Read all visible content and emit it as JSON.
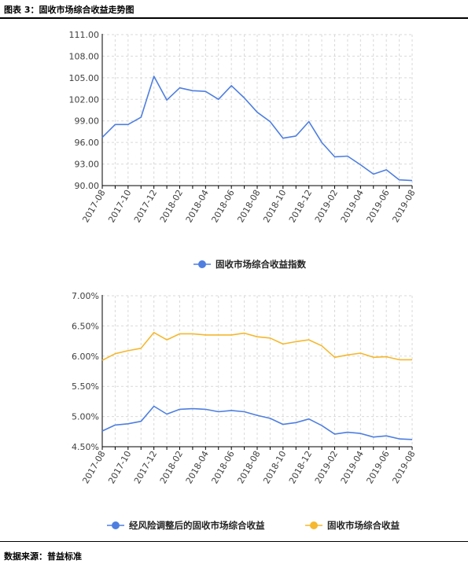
{
  "header": {
    "title": "图表 3：固收市场综合收益走势图"
  },
  "footer": {
    "source": "数据来源：普益标准"
  },
  "colors": {
    "blue": "#4E7FE0",
    "orange": "#F5B82E",
    "grid": "#d9d9d9",
    "axis": "#000000"
  },
  "chart_data": [
    {
      "type": "line",
      "x_labels": [
        "2017-08",
        "2017-10",
        "2017-12",
        "2018-02",
        "2018-04",
        "2018-06",
        "2018-08",
        "2018-10",
        "2018-12",
        "2019-02",
        "2019-04",
        "2019-06",
        "2019-08"
      ],
      "yticks": [
        "90.00",
        "93.00",
        "96.00",
        "99.00",
        "102.00",
        "105.00",
        "108.00",
        "111.00"
      ],
      "ylim": [
        90,
        111
      ],
      "series": [
        {
          "name": "固收市场综合收益指数",
          "color": "#4E7FE0",
          "values": [
            96.7,
            98.5,
            98.5,
            99.5,
            105.2,
            101.9,
            103.6,
            103.2,
            103.1,
            102.0,
            103.9,
            102.2,
            100.2,
            98.9,
            96.6,
            96.9,
            98.9,
            96.0,
            94.0,
            94.1,
            92.9,
            91.6,
            92.2,
            90.8,
            90.7
          ]
        }
      ]
    },
    {
      "type": "line",
      "x_labels": [
        "2017-08",
        "2017-10",
        "2017-12",
        "2018-02",
        "2018-04",
        "2018-06",
        "2018-08",
        "2018-10",
        "2018-12",
        "2019-02",
        "2019-04",
        "2019-06",
        "2019-08"
      ],
      "yticks": [
        "4.50%",
        "5.00%",
        "5.50%",
        "6.00%",
        "6.50%",
        "7.00%"
      ],
      "ylim": [
        4.5,
        7.0
      ],
      "series": [
        {
          "name": "经风险调整后的固收市场综合收益",
          "color": "#4E7FE0",
          "values": [
            4.76,
            4.86,
            4.88,
            4.92,
            5.17,
            5.04,
            5.12,
            5.13,
            5.12,
            5.08,
            5.1,
            5.08,
            5.02,
            4.97,
            4.87,
            4.9,
            4.96,
            4.85,
            4.71,
            4.74,
            4.72,
            4.66,
            4.68,
            4.63,
            4.62
          ]
        },
        {
          "name": "固收市场综合收益",
          "color": "#F5B82E",
          "values": [
            5.93,
            6.04,
            6.09,
            6.13,
            6.39,
            6.27,
            6.37,
            6.37,
            6.35,
            6.35,
            6.35,
            6.38,
            6.32,
            6.3,
            6.2,
            6.24,
            6.27,
            6.17,
            5.98,
            6.02,
            6.05,
            5.98,
            5.99,
            5.94,
            5.94
          ]
        }
      ]
    }
  ]
}
